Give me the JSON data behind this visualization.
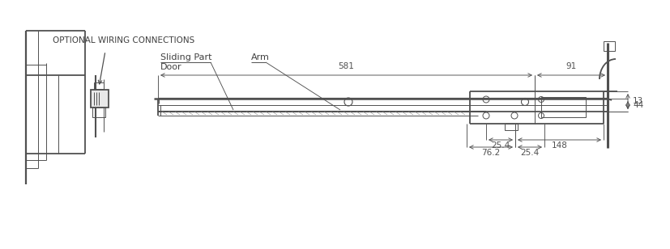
{
  "bg_color": "#ffffff",
  "line_color": "#505050",
  "dim_color": "#505050",
  "text_color": "#404040",
  "lw_main": 1.3,
  "lw_thin": 0.7,
  "lw_dim": 0.65,
  "annotation_label_wiring": "OPTIONAL WIRING CONNECTIONS",
  "annotation_label_sliding": "Sliding Part",
  "annotation_label_arm": "Arm",
  "annotation_label_door": "Door",
  "dim_581": "581",
  "dim_91": "91",
  "dim_44": "44",
  "dim_13": "13",
  "dim_25_4a": "25.4",
  "dim_148": "148",
  "dim_76_2": "76.2",
  "dim_25_4b": "25.4"
}
